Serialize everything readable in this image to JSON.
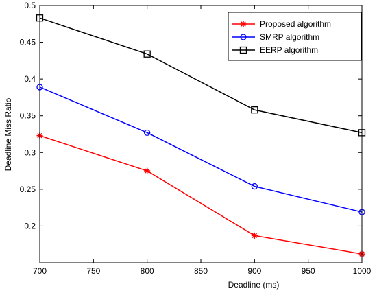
{
  "chart_data": {
    "type": "line",
    "title": "",
    "xlabel": "Deadline (ms)",
    "ylabel": "Deadline Miss Ratio",
    "xlim": [
      700,
      1000
    ],
    "ylim": [
      0.15,
      0.5
    ],
    "xticks": [
      700,
      750,
      800,
      850,
      900,
      950,
      1000
    ],
    "yticks": [
      0.2,
      0.25,
      0.3,
      0.35,
      0.4,
      0.45,
      0.5
    ],
    "grid": false,
    "legend_position": "top-right",
    "x": [
      700,
      800,
      900,
      1000
    ],
    "series": [
      {
        "name": "Proposed algorithm",
        "values": [
          0.323,
          0.275,
          0.187,
          0.162
        ],
        "color": "#ff0000",
        "marker": "star"
      },
      {
        "name": "SMRP algorithm",
        "values": [
          0.389,
          0.327,
          0.254,
          0.219
        ],
        "color": "#0000ff",
        "marker": "circle"
      },
      {
        "name": "EERP algorithm",
        "values": [
          0.483,
          0.434,
          0.358,
          0.327
        ],
        "color": "#000000",
        "marker": "square"
      }
    ]
  }
}
